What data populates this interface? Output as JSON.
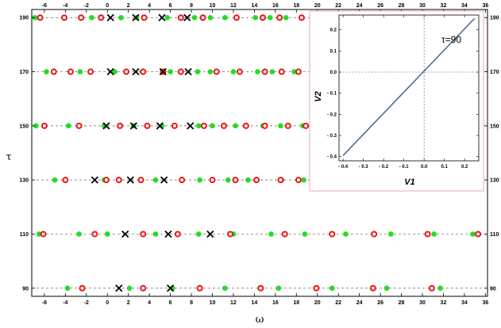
{
  "chart_data": [
    {
      "type": "scatter",
      "title": "",
      "xlabel": "ω",
      "ylabel": "τ",
      "xlim": [
        -7.2,
        36.2
      ],
      "ylim": [
        87,
        193
      ],
      "x_ticks": [
        -6,
        -4,
        -2,
        0,
        2,
        4,
        6,
        8,
        10,
        12,
        14,
        16,
        18,
        20,
        22,
        24,
        26,
        28,
        30,
        32,
        34,
        36
      ],
      "y_ticks": [
        90,
        110,
        130,
        150,
        170,
        190
      ],
      "grid": "dashed horizontal lines at each tau",
      "colors": {
        "green": "#22dd22",
        "red": "#ee1111",
        "black": "#000000"
      },
      "series": [
        {
          "marker": "filled-circle",
          "color": "#22dd22",
          "points": [
            [
              -6.9,
              190
            ],
            [
              -1.5,
              190
            ],
            [
              1.3,
              190
            ],
            [
              2.8,
              190
            ],
            [
              5.7,
              190
            ],
            [
              8.3,
              190
            ],
            [
              9.8,
              190
            ],
            [
              11.2,
              190
            ],
            [
              14.1,
              190
            ],
            [
              15.5,
              190
            ],
            [
              17.0,
              190
            ],
            [
              19.8,
              190
            ],
            [
              -5.8,
              170
            ],
            [
              -2.6,
              170
            ],
            [
              0.7,
              170
            ],
            [
              3.3,
              170
            ],
            [
              6.0,
              170
            ],
            [
              8.6,
              170
            ],
            [
              9.8,
              170
            ],
            [
              12.0,
              170
            ],
            [
              14.3,
              170
            ],
            [
              15.7,
              170
            ],
            [
              17.8,
              170
            ],
            [
              19.5,
              170
            ],
            [
              -6.8,
              150
            ],
            [
              -3.7,
              150
            ],
            [
              -0.3,
              150
            ],
            [
              2.5,
              150
            ],
            [
              5.2,
              150
            ],
            [
              8.7,
              150
            ],
            [
              10.0,
              150
            ],
            [
              12.2,
              150
            ],
            [
              14.8,
              150
            ],
            [
              16.5,
              150
            ],
            [
              18.6,
              150
            ],
            [
              19.8,
              150
            ],
            [
              -5.0,
              130
            ],
            [
              -0.3,
              130
            ],
            [
              4.6,
              130
            ],
            [
              8.8,
              130
            ],
            [
              11.5,
              130
            ],
            [
              13.4,
              130
            ],
            [
              16.6,
              130
            ],
            [
              18.7,
              130
            ],
            [
              -6.5,
              110
            ],
            [
              -2.7,
              110
            ],
            [
              0.0,
              110
            ],
            [
              4.6,
              110
            ],
            [
              8.7,
              110
            ],
            [
              12.0,
              110
            ],
            [
              15.6,
              110
            ],
            [
              18.8,
              110
            ],
            [
              22.7,
              110
            ],
            [
              27.0,
              110
            ],
            [
              31.1,
              110
            ],
            [
              34.8,
              110
            ],
            [
              -3.8,
              90
            ],
            [
              2.1,
              90
            ],
            [
              6.2,
              90
            ],
            [
              11.2,
              90
            ],
            [
              16.3,
              90
            ],
            [
              21.4,
              90
            ],
            [
              26.6,
              90
            ],
            [
              31.7,
              90
            ]
          ]
        },
        {
          "marker": "open-circle",
          "color": "#ee1111",
          "points": [
            [
              -6.4,
              190
            ],
            [
              -4.1,
              190
            ],
            [
              -2.5,
              190
            ],
            [
              -0.6,
              190
            ],
            [
              3.5,
              190
            ],
            [
              7.0,
              190
            ],
            [
              9.1,
              190
            ],
            [
              12.3,
              190
            ],
            [
              14.8,
              190
            ],
            [
              16.4,
              190
            ],
            [
              18.5,
              190
            ],
            [
              20.5,
              190
            ],
            [
              -5.1,
              170
            ],
            [
              -3.5,
              170
            ],
            [
              -1.6,
              170
            ],
            [
              1.8,
              170
            ],
            [
              3.4,
              170
            ],
            [
              5.3,
              170
            ],
            [
              7.0,
              170
            ],
            [
              10.4,
              170
            ],
            [
              12.6,
              170
            ],
            [
              15.0,
              170
            ],
            [
              16.6,
              170
            ],
            [
              18.2,
              170
            ],
            [
              -6.0,
              150
            ],
            [
              -2.7,
              150
            ],
            [
              1.2,
              150
            ],
            [
              3.8,
              150
            ],
            [
              6.4,
              150
            ],
            [
              9.2,
              150
            ],
            [
              11.1,
              150
            ],
            [
              13.2,
              150
            ],
            [
              15.0,
              150
            ],
            [
              17.2,
              150
            ],
            [
              18.9,
              150
            ],
            [
              -4.0,
              130
            ],
            [
              -0.1,
              130
            ],
            [
              1.1,
              130
            ],
            [
              3.2,
              130
            ],
            [
              7.1,
              130
            ],
            [
              10.0,
              130
            ],
            [
              12.2,
              130
            ],
            [
              14.2,
              130
            ],
            [
              16.5,
              130
            ],
            [
              18.2,
              130
            ],
            [
              -6.1,
              110
            ],
            [
              -1.2,
              110
            ],
            [
              3.4,
              110
            ],
            [
              6.7,
              110
            ],
            [
              11.7,
              110
            ],
            [
              16.9,
              110
            ],
            [
              21.4,
              110
            ],
            [
              25.4,
              110
            ],
            [
              30.5,
              110
            ],
            [
              35.3,
              110
            ],
            [
              -2.4,
              90
            ],
            [
              3.4,
              90
            ],
            [
              8.8,
              90
            ],
            [
              14.6,
              90
            ],
            [
              19.9,
              90
            ],
            [
              25.3,
              90
            ],
            [
              30.9,
              90
            ]
          ]
        },
        {
          "marker": "cross",
          "color": "#000000",
          "points": [
            [
              0.3,
              190
            ],
            [
              2.7,
              190
            ],
            [
              5.2,
              190
            ],
            [
              7.6,
              190
            ],
            [
              0.3,
              170
            ],
            [
              2.7,
              170
            ],
            [
              5.3,
              170
            ],
            [
              7.7,
              170
            ],
            [
              -0.1,
              150
            ],
            [
              2.5,
              150
            ],
            [
              5.0,
              150
            ],
            [
              7.9,
              150
            ],
            [
              -1.2,
              130
            ],
            [
              2.2,
              130
            ],
            [
              5.4,
              130
            ],
            [
              1.7,
              110
            ],
            [
              5.8,
              110
            ],
            [
              9.8,
              110
            ],
            [
              1.1,
              90
            ],
            [
              6.0,
              90
            ]
          ]
        }
      ]
    },
    {
      "type": "line",
      "title": "",
      "annotation": "τ=90",
      "xlabel": "V1",
      "ylabel": "V2",
      "xlim": [
        -0.42,
        0.27
      ],
      "ylim": [
        -0.42,
        0.27
      ],
      "x_ticks": [
        -0.4,
        -0.3,
        -0.2,
        -0.1,
        0.0,
        0.1,
        0.2
      ],
      "y_ticks": [
        0.2,
        0.1,
        0.0,
        -0.1,
        -0.2,
        -0.3,
        -0.4
      ],
      "grid": "dashed lines at x=0 and y=0",
      "colors": {
        "line": "#4a6a9a",
        "frame": "#e8aab8"
      },
      "series": [
        {
          "x": [
            -0.4,
            0.25
          ],
          "y": [
            -0.395,
            0.255
          ]
        }
      ]
    }
  ]
}
